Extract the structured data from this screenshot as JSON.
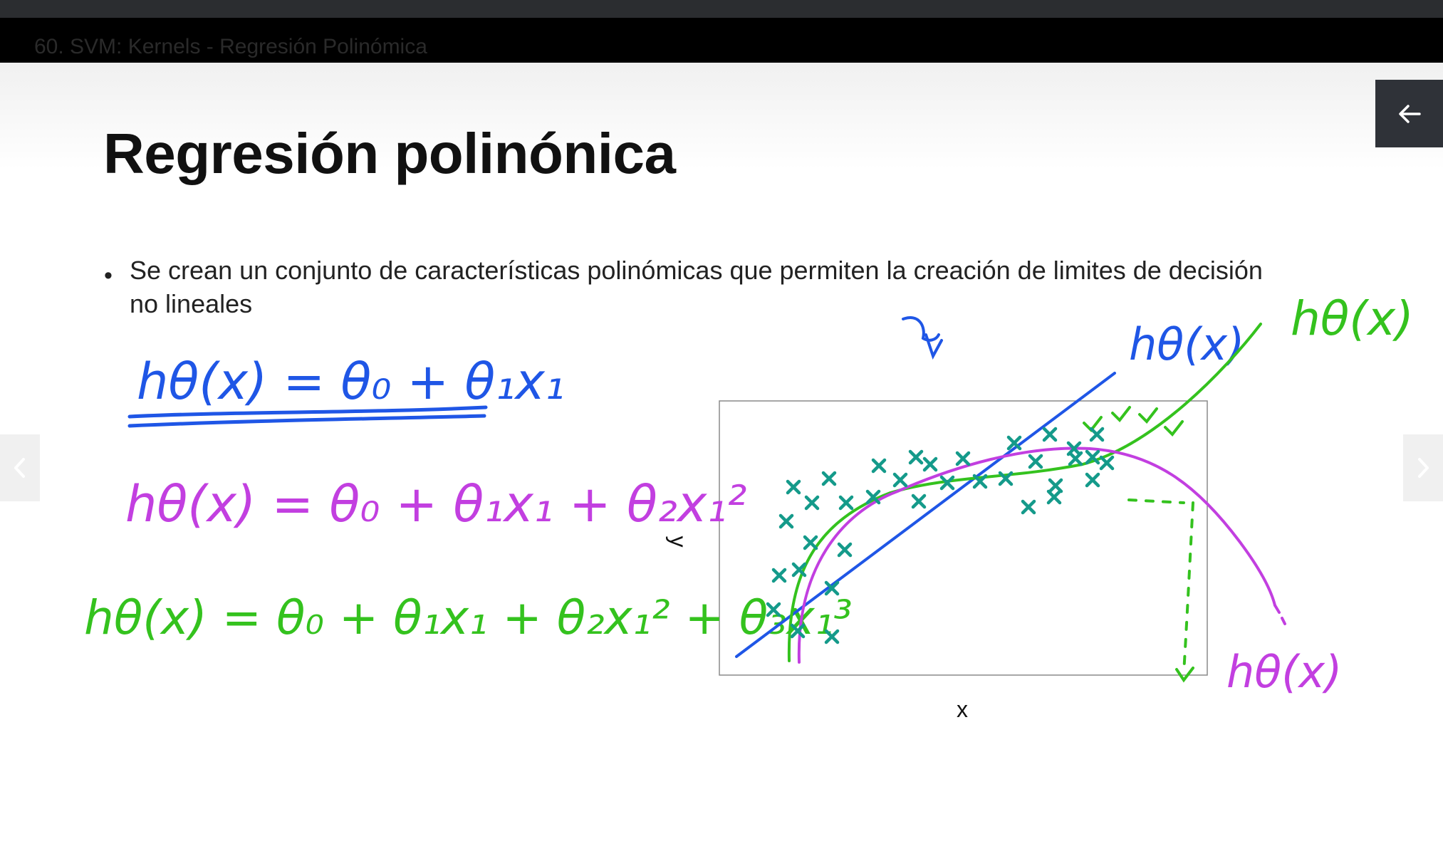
{
  "video": {
    "title": "60. SVM: Kernels - Regresión Polinómica"
  },
  "slide": {
    "title": "Regresión polinónica",
    "bullet": "Se crean un conjunto de características polinómicas que permiten la creación de limites de decisión no lineales"
  },
  "controls": {
    "back_icon": "arrow-left-icon",
    "prev_icon": "chevron-left-icon",
    "next_icon": "chevron-right-icon"
  },
  "colors": {
    "blue": "#1f56e6",
    "magenta": "#c23fe0",
    "green": "#34c21e",
    "teal": "#149a8a"
  },
  "annotations": {
    "eq1": "hθ(x) = θ₀ + θ₁x₁",
    "eq2": "hθ(x) = θ₀ + θ₁x₁ + θ₂x₁²",
    "eq3": "hθ(x) = θ₀ + θ₁x₁ + θ₂x₁² + θ₃x₁³",
    "label_blue": "hθ(x)",
    "label_green": "hθ(x)",
    "label_magenta": "hθ(x)"
  },
  "chart_data": {
    "type": "scatter",
    "xlabel": "x",
    "ylabel": "y",
    "marker": "x"
  }
}
